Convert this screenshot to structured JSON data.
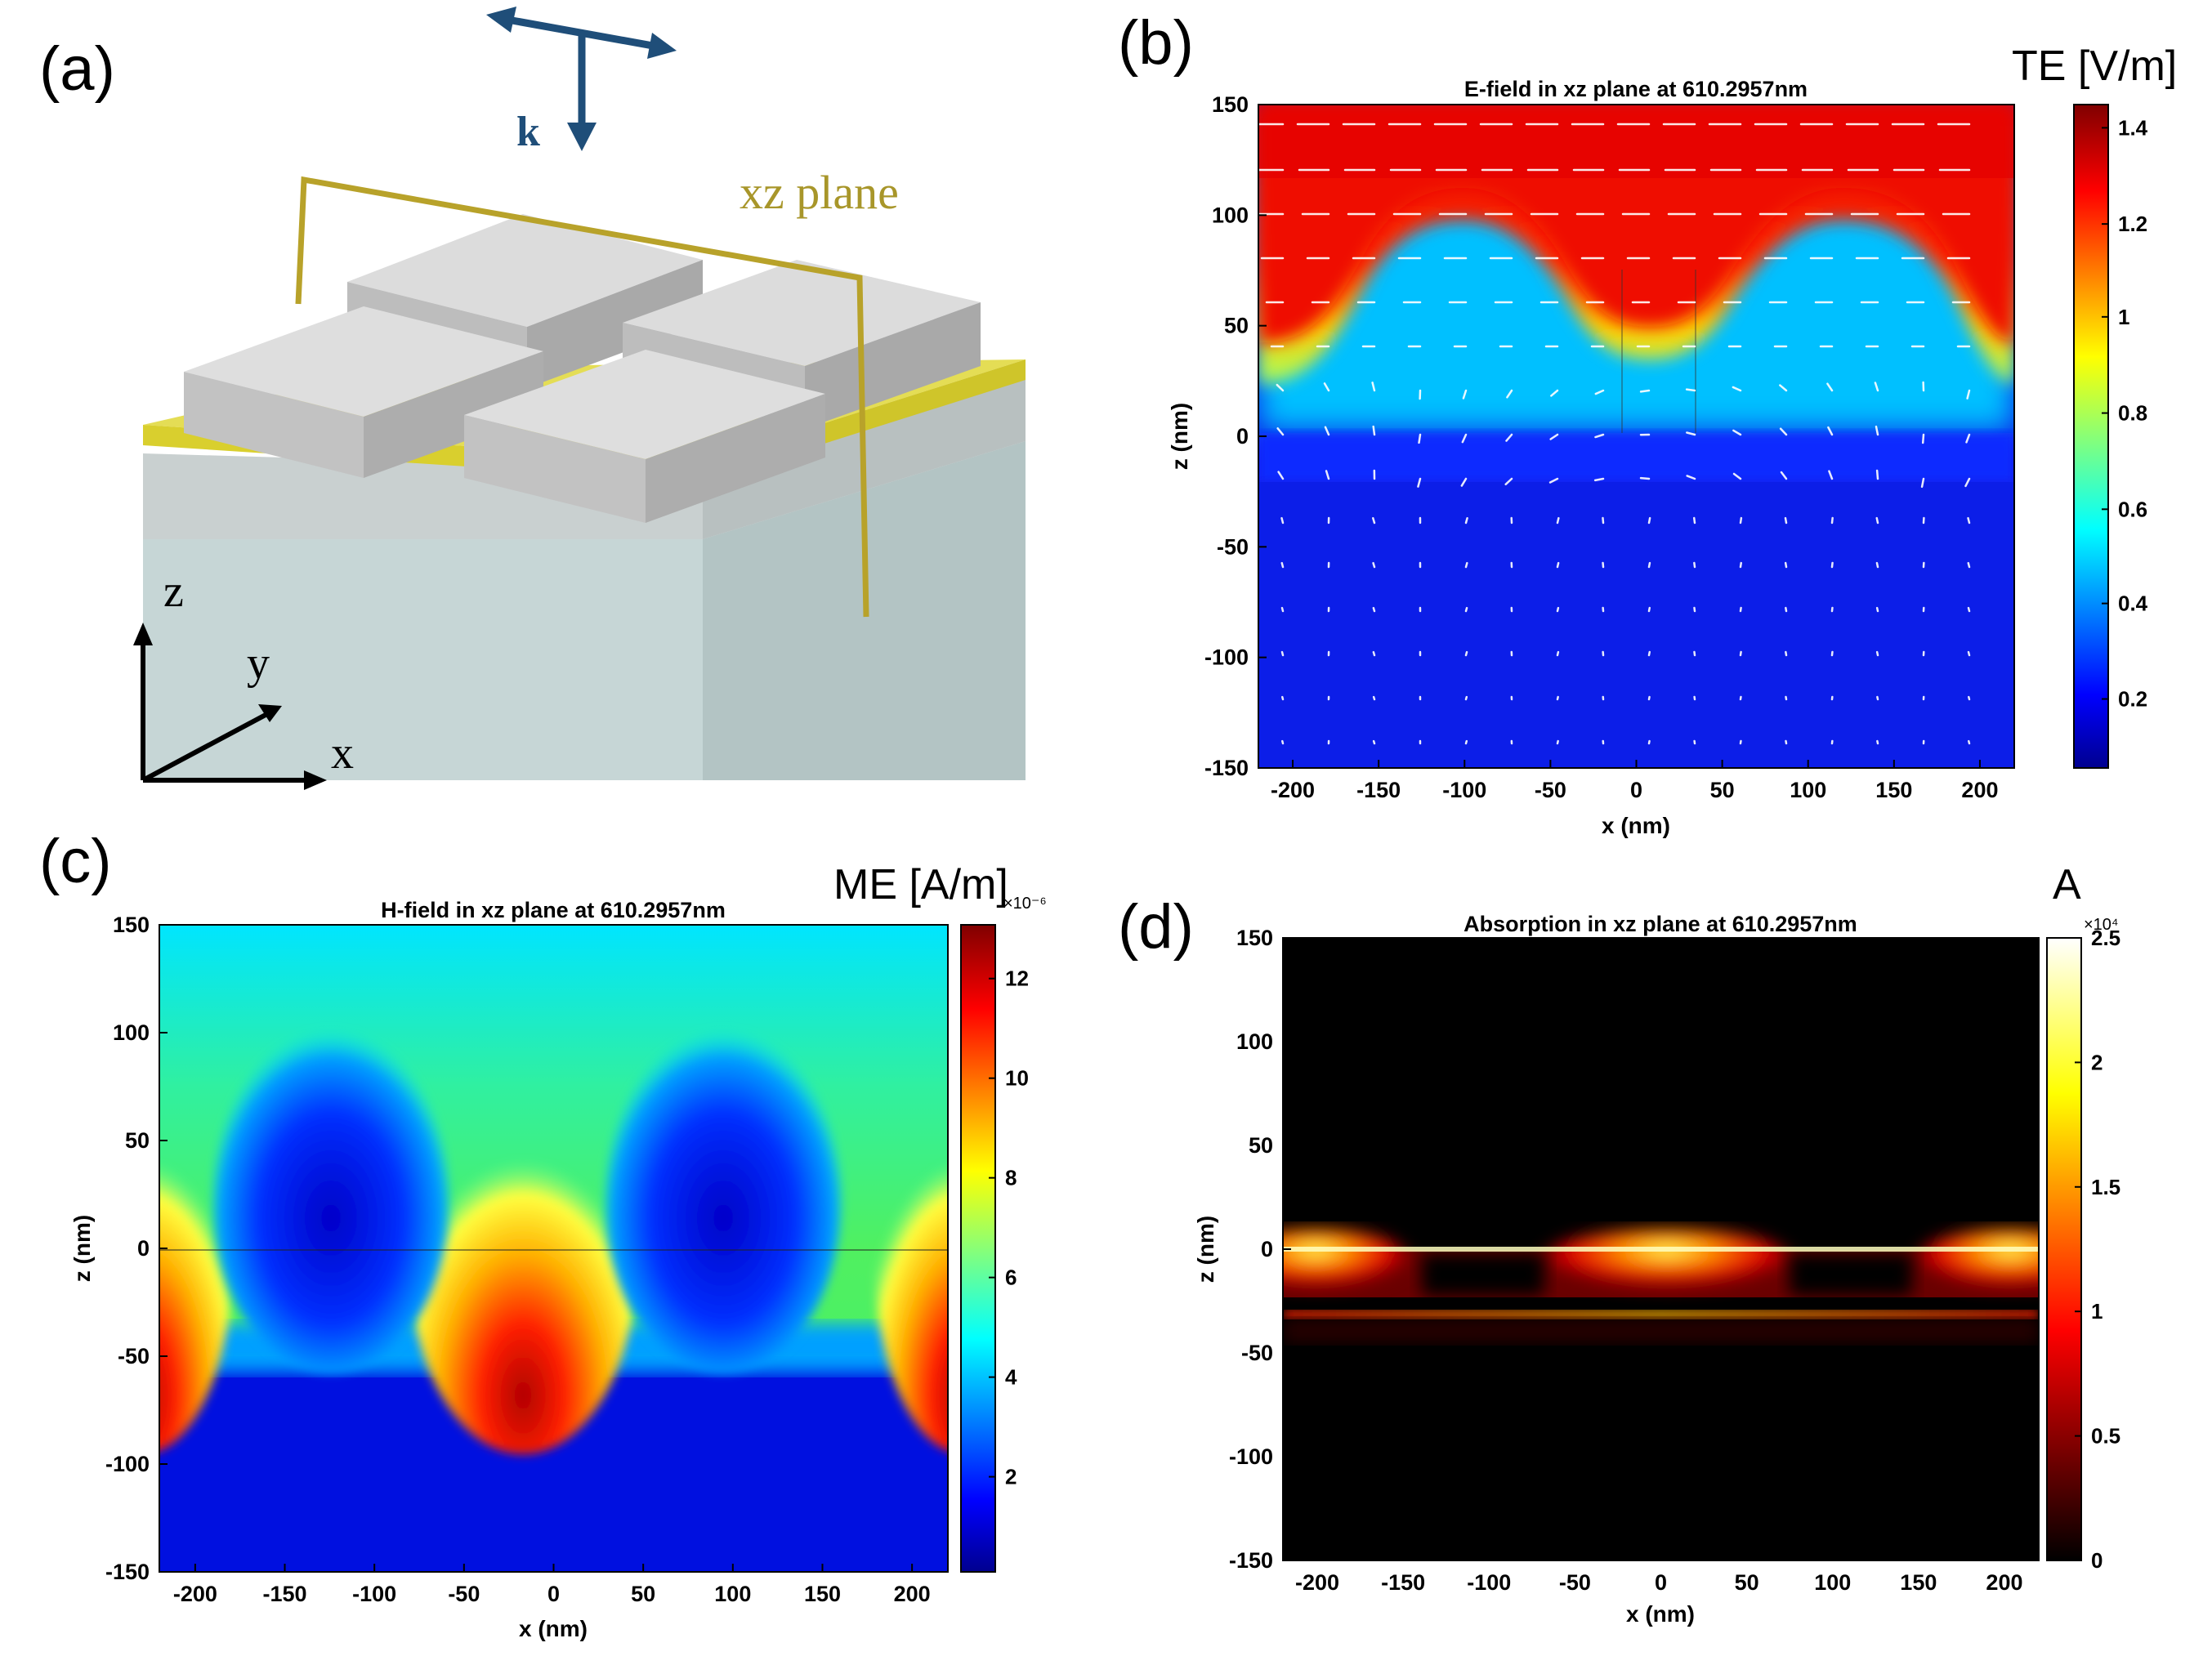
{
  "panel_a": {
    "label": "(a)",
    "k_label": "k",
    "plane_label": "xz plane",
    "axis_z": "z",
    "axis_y": "y",
    "axis_x": "x",
    "colors": {
      "arrow": "#1f4e79",
      "gold": "#b8a22a",
      "plane_text": "#a8962a"
    }
  },
  "panels": {
    "b": {
      "label": "(b)",
      "unit_label": "TE [V/m]",
      "title": "E-field in xz plane at 610.2957nm",
      "xlabel": "x (nm)",
      "ylabel": "z (nm)",
      "xticks": [
        "-200",
        "-150",
        "-100",
        "-50",
        "0",
        "50",
        "100",
        "150",
        "200"
      ],
      "yticks": [
        "150",
        "100",
        "50",
        "0",
        "-50",
        "-100",
        "-150"
      ],
      "cbar_ticks": [
        "1.4",
        "1.2",
        "1",
        "0.8",
        "0.6",
        "0.4",
        "0.2"
      ],
      "cbar_exponent": ""
    },
    "c": {
      "label": "(c)",
      "unit_label": "ME [A/m]",
      "title": "H-field in xz plane at 610.2957nm",
      "xlabel": "x (nm)",
      "ylabel": "z (nm)",
      "xticks": [
        "-200",
        "-150",
        "-100",
        "-50",
        "0",
        "50",
        "100",
        "150",
        "200"
      ],
      "yticks": [
        "150",
        "100",
        "50",
        "0",
        "-50",
        "-100",
        "-150"
      ],
      "cbar_ticks": [
        "12",
        "10",
        "8",
        "6",
        "4",
        "2"
      ],
      "cbar_exponent": "×10⁻⁶"
    },
    "d": {
      "label": "(d)",
      "unit_label": "A",
      "title": "Absorption in xz plane at 610.2957nm",
      "xlabel": "x (nm)",
      "ylabel": "z (nm)",
      "xticks": [
        "-200",
        "-150",
        "-100",
        "-50",
        "0",
        "50",
        "100",
        "150",
        "200"
      ],
      "yticks": [
        "150",
        "100",
        "50",
        "0",
        "-50",
        "-100",
        "-150"
      ],
      "cbar_ticks": [
        "2.5",
        "2",
        "1.5",
        "1",
        "0.5",
        "0"
      ],
      "cbar_exponent": "×10⁴"
    }
  },
  "chart_data": [
    {
      "type": "heatmap",
      "title": "E-field in xz plane at 610.2957nm",
      "xlabel": "x (nm)",
      "ylabel": "z (nm)",
      "xlim": [
        -220,
        220
      ],
      "ylim": [
        -150,
        150
      ],
      "colorbar": {
        "label": "TE [V/m]",
        "range": [
          0,
          1.4
        ],
        "colormap": "jet"
      },
      "overlay": "white E-field vector arrows"
    },
    {
      "type": "heatmap",
      "title": "H-field in xz plane at 610.2957nm",
      "xlabel": "x (nm)",
      "ylabel": "z (nm)",
      "xlim": [
        -220,
        220
      ],
      "ylim": [
        -150,
        150
      ],
      "colorbar": {
        "label": "ME [A/m]",
        "range": [
          0,
          1.3e-05
        ],
        "colormap": "jet"
      }
    },
    {
      "type": "heatmap",
      "title": "Absorption in xz plane at 610.2957nm",
      "xlabel": "x (nm)",
      "ylabel": "z (nm)",
      "xlim": [
        -220,
        220
      ],
      "ylim": [
        -150,
        150
      ],
      "colorbar": {
        "label": "A",
        "range": [
          0,
          25000
        ],
        "colormap": "hot"
      }
    }
  ]
}
